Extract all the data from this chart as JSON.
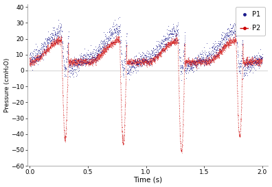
{
  "xlabel": "Time (s)",
  "ylabel": "Pressure (cmH₂O)",
  "xlim": [
    -0.02,
    2.05
  ],
  "ylim": [
    -60,
    42
  ],
  "xticks": [
    0,
    0.5,
    1.0,
    1.5,
    2.0
  ],
  "yticks": [
    -60,
    -50,
    -40,
    -30,
    -20,
    -10,
    0,
    10,
    20,
    30,
    40
  ],
  "p1_color": "#1a1a8c",
  "p2_color": "#cc0000",
  "background_color": "#ffffff",
  "cycle_period": 0.5,
  "p1_peak": 25,
  "p1_min": 2,
  "p2_peak": 19,
  "dip_depths": [
    -43,
    -46,
    -52,
    -42
  ],
  "legend_p1": "P1",
  "legend_p2": "P2"
}
